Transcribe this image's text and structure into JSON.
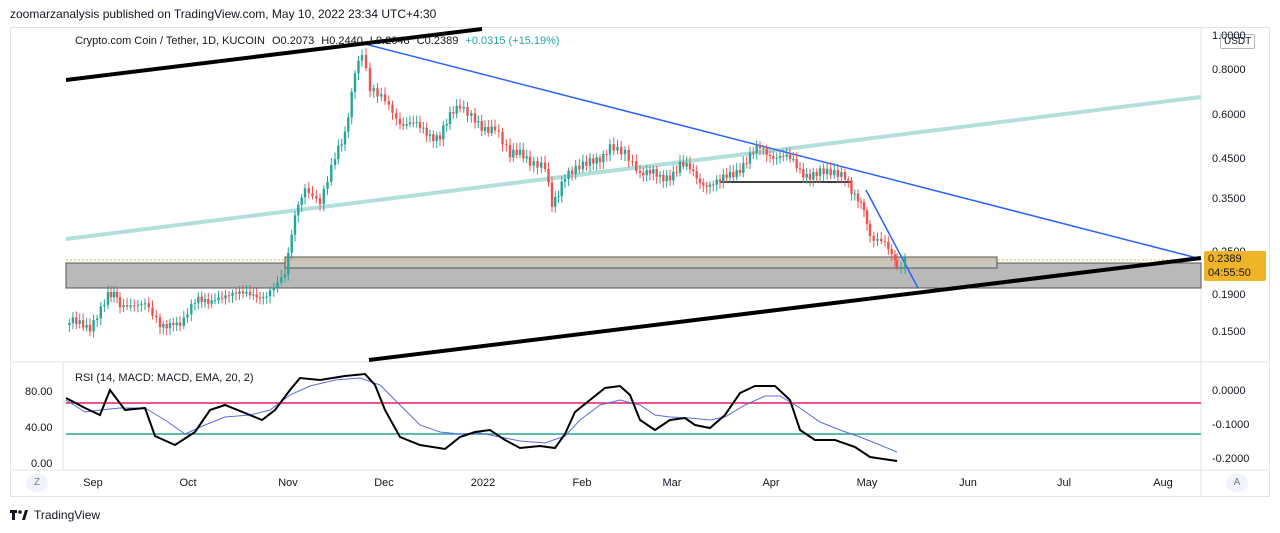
{
  "publish_info": "zoomarzanalysis published on TradingView.com, May 10, 2022 23:34 UTC+4:30",
  "legend": {
    "symbol": "Crypto.com Coin / Tether, 1D, KUCOIN",
    "open": "O0.2073",
    "high": "H0.2440",
    "low": "L0.2048",
    "close": "C0.2389",
    "change": "+0.0315 (+15.19%)"
  },
  "currency": "USDT",
  "price_axis": [
    "1.0000",
    "0.8000",
    "0.6000",
    "0.4500",
    "0.3500",
    "0.2500",
    "0.1900",
    "0.1500"
  ],
  "price_badge": {
    "price": "0.2389",
    "countdown": "04:55:50",
    "color": "#f0b429"
  },
  "indicator_legend": "RSI (14, MACD: MACD, EMA, 20, 2)",
  "rsi_left_axis": [
    "80.00",
    "40.00",
    "0.00"
  ],
  "macd_right_axis": [
    "0.0000",
    "-0.1000",
    "-0.2000"
  ],
  "time_axis": [
    "Sep",
    "Oct",
    "Nov",
    "Dec",
    "2022",
    "Feb",
    "Mar",
    "Apr",
    "May",
    "Jun",
    "Jul",
    "Aug"
  ],
  "corner_buttons": {
    "left": "Z",
    "right": "A"
  },
  "brand": "TradingView",
  "colors": {
    "up": "#26a69a",
    "down": "#ef5350",
    "trendline_blue": "#2962ff",
    "trendline_black": "#000000",
    "channel_mint": "#b2dfdb",
    "zone_gray": "#b0b0b0",
    "rsi_upper": "#e91e63",
    "rsi_lower": "#26a69a",
    "ema_line": "#5b6be6"
  }
}
